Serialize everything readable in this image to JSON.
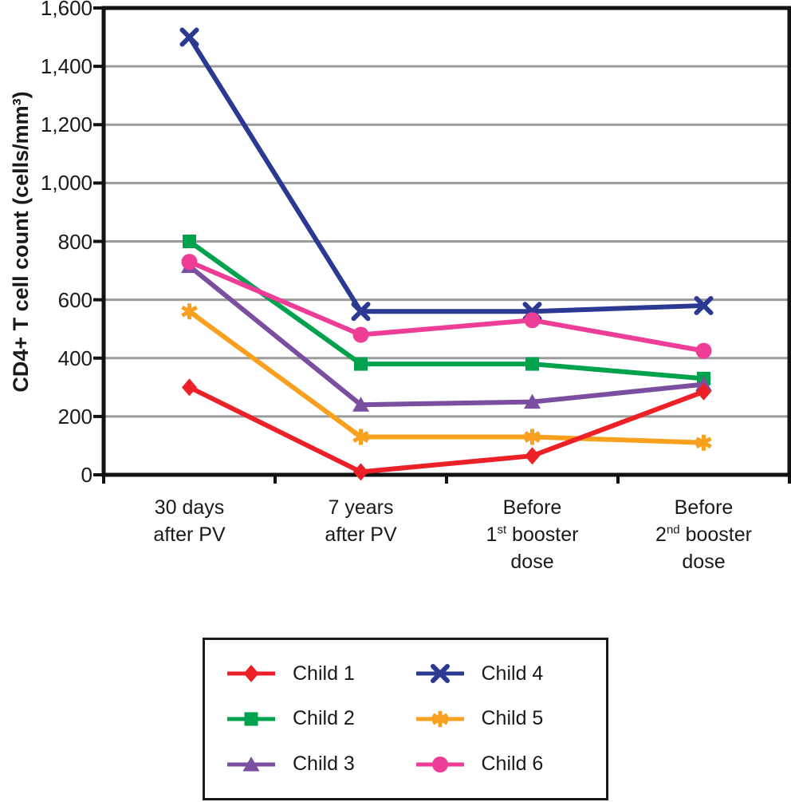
{
  "chart_data": {
    "type": "line",
    "title": "",
    "xlabel": "",
    "ylabel": "CD4+ T cell count (cells/mm³)",
    "ylim": [
      0,
      1600
    ],
    "ytick_step": 200,
    "ytick_labels": [
      "0",
      "200",
      "400",
      "600",
      "800",
      "1,000",
      "1,200",
      "1,400",
      "1,600"
    ],
    "categories": [
      "30 days after PV",
      "7 years after PV",
      "Before 1st booster dose",
      "Before 2nd booster dose"
    ],
    "category_lines": [
      [
        "30 days",
        "after PV"
      ],
      [
        "7 years",
        "after PV"
      ],
      [
        "Before",
        "1st booster",
        "dose"
      ],
      [
        "Before",
        "2nd booster",
        "dose"
      ]
    ],
    "grid": true,
    "legend_position": "bottom-center",
    "series": [
      {
        "name": "Child 1",
        "marker": "diamond",
        "color": "#EC2027",
        "values": [
          300,
          10,
          65,
          285
        ]
      },
      {
        "name": "Child 2",
        "marker": "square",
        "color": "#00A24E",
        "values": [
          800,
          380,
          380,
          330
        ]
      },
      {
        "name": "Child 3",
        "marker": "triangle",
        "color": "#7B4FA0",
        "values": [
          715,
          240,
          250,
          310
        ]
      },
      {
        "name": "Child 4",
        "marker": "x",
        "color": "#2B3992",
        "values": [
          1500,
          560,
          560,
          580
        ]
      },
      {
        "name": "Child 5",
        "marker": "asterisk",
        "color": "#F9A01E",
        "values": [
          560,
          130,
          130,
          110
        ]
      },
      {
        "name": "Child 6",
        "marker": "circle",
        "color": "#EE3D97",
        "values": [
          730,
          480,
          530,
          425
        ]
      }
    ],
    "colors": {
      "axis": "#111111",
      "gridline": "#9B9B9B",
      "background": "#FFFFFF"
    }
  }
}
